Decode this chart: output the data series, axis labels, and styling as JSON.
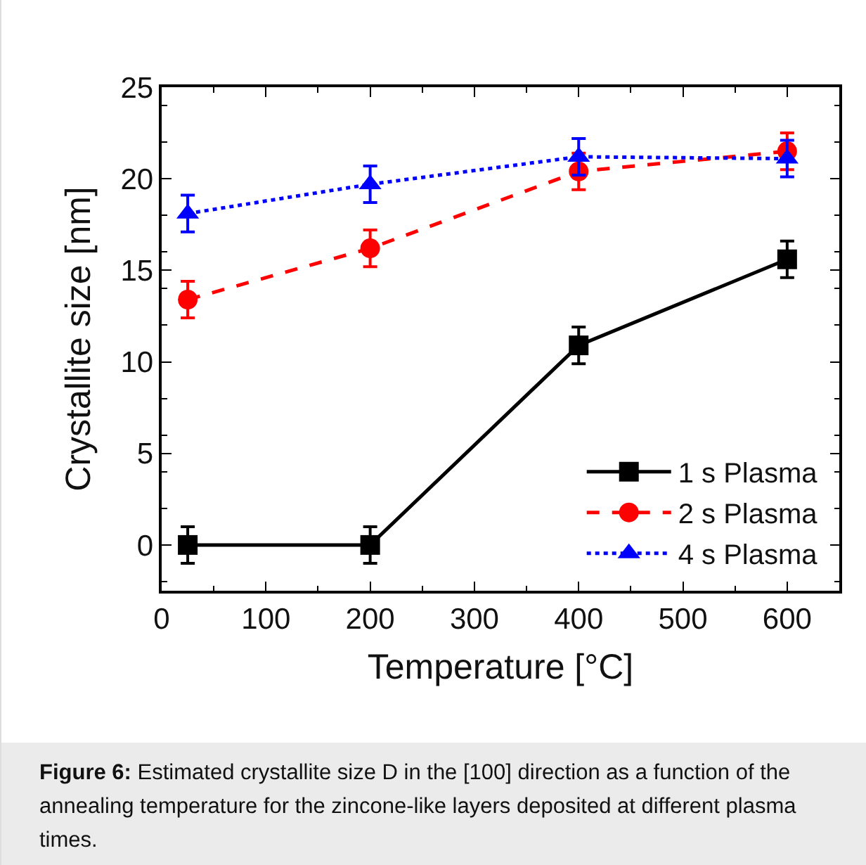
{
  "chart_data": {
    "type": "line",
    "xlabel": "Temperature [°C]",
    "ylabel": "Crystallite size [nm]",
    "x": [
      25,
      200,
      400,
      600
    ],
    "series": [
      {
        "name": "1 s Plasma",
        "color": "#000000",
        "values": [
          0,
          0,
          10.9,
          15.6
        ],
        "errors": [
          1,
          1,
          1,
          1
        ],
        "marker": "square",
        "line_style": "solid"
      },
      {
        "name": "2 s Plasma",
        "color": "#ff0000",
        "values": [
          13.4,
          16.2,
          20.4,
          21.5
        ],
        "errors": [
          1,
          1,
          1,
          1
        ],
        "marker": "circle",
        "line_style": "dashed"
      },
      {
        "name": "4 s Plasma",
        "color": "#0000ff",
        "values": [
          18.1,
          19.7,
          21.2,
          21.1
        ],
        "errors": [
          1,
          1,
          1,
          1
        ],
        "marker": "triangle",
        "line_style": "dotted"
      }
    ],
    "xlim": [
      0,
      650
    ],
    "xticks": [
      0,
      100,
      200,
      300,
      400,
      500,
      600
    ],
    "ylim": [
      -2.5,
      25
    ],
    "yticks": [
      0,
      5,
      10,
      15,
      20,
      25
    ],
    "grid": false,
    "legend": "bottom right",
    "annotations": [
      "Figure 6:",
      "Estimated crystallite size D in the [100] direction as a function of the annealing temperature for the zincone-like layers deposited at different plasma times."
    ]
  }
}
